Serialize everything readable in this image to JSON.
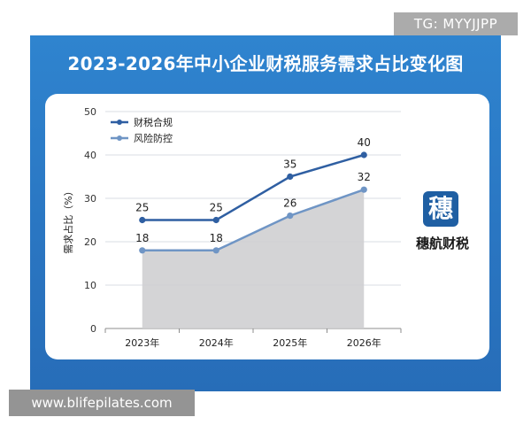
{
  "watermark_tag": "TG: MYYJJPP",
  "watermark_url": "www.blifepilates.com",
  "brand": {
    "icon_char": "穗",
    "name": "穗航财税",
    "icon_color": "#1f5fa3"
  },
  "colors": {
    "panel_blue": "#2a76c2",
    "series1": "#2f5fa2",
    "series2": "#6f95c5",
    "area_fill": "#cfcfd2"
  },
  "chart_data": {
    "type": "line",
    "title": "2023-2026年中小企业财税服务需求占比变化图",
    "xlabel": "",
    "ylabel": "需求占比（%）",
    "categories": [
      "2023年",
      "2024年",
      "2025年",
      "2026年"
    ],
    "ylim": [
      0,
      50
    ],
    "yticks": [
      "0",
      "10",
      "20",
      "30",
      "40",
      "50"
    ],
    "grid": true,
    "legend_position": "top-left",
    "series": [
      {
        "name": "财税合规",
        "values": [
          25,
          25,
          35,
          40
        ],
        "labels": [
          "25",
          "25",
          "35",
          "40"
        ]
      },
      {
        "name": "风险防控",
        "values": [
          18,
          18,
          26,
          32
        ],
        "labels": [
          "18",
          "18",
          "26",
          "32"
        ],
        "area": true
      }
    ]
  }
}
